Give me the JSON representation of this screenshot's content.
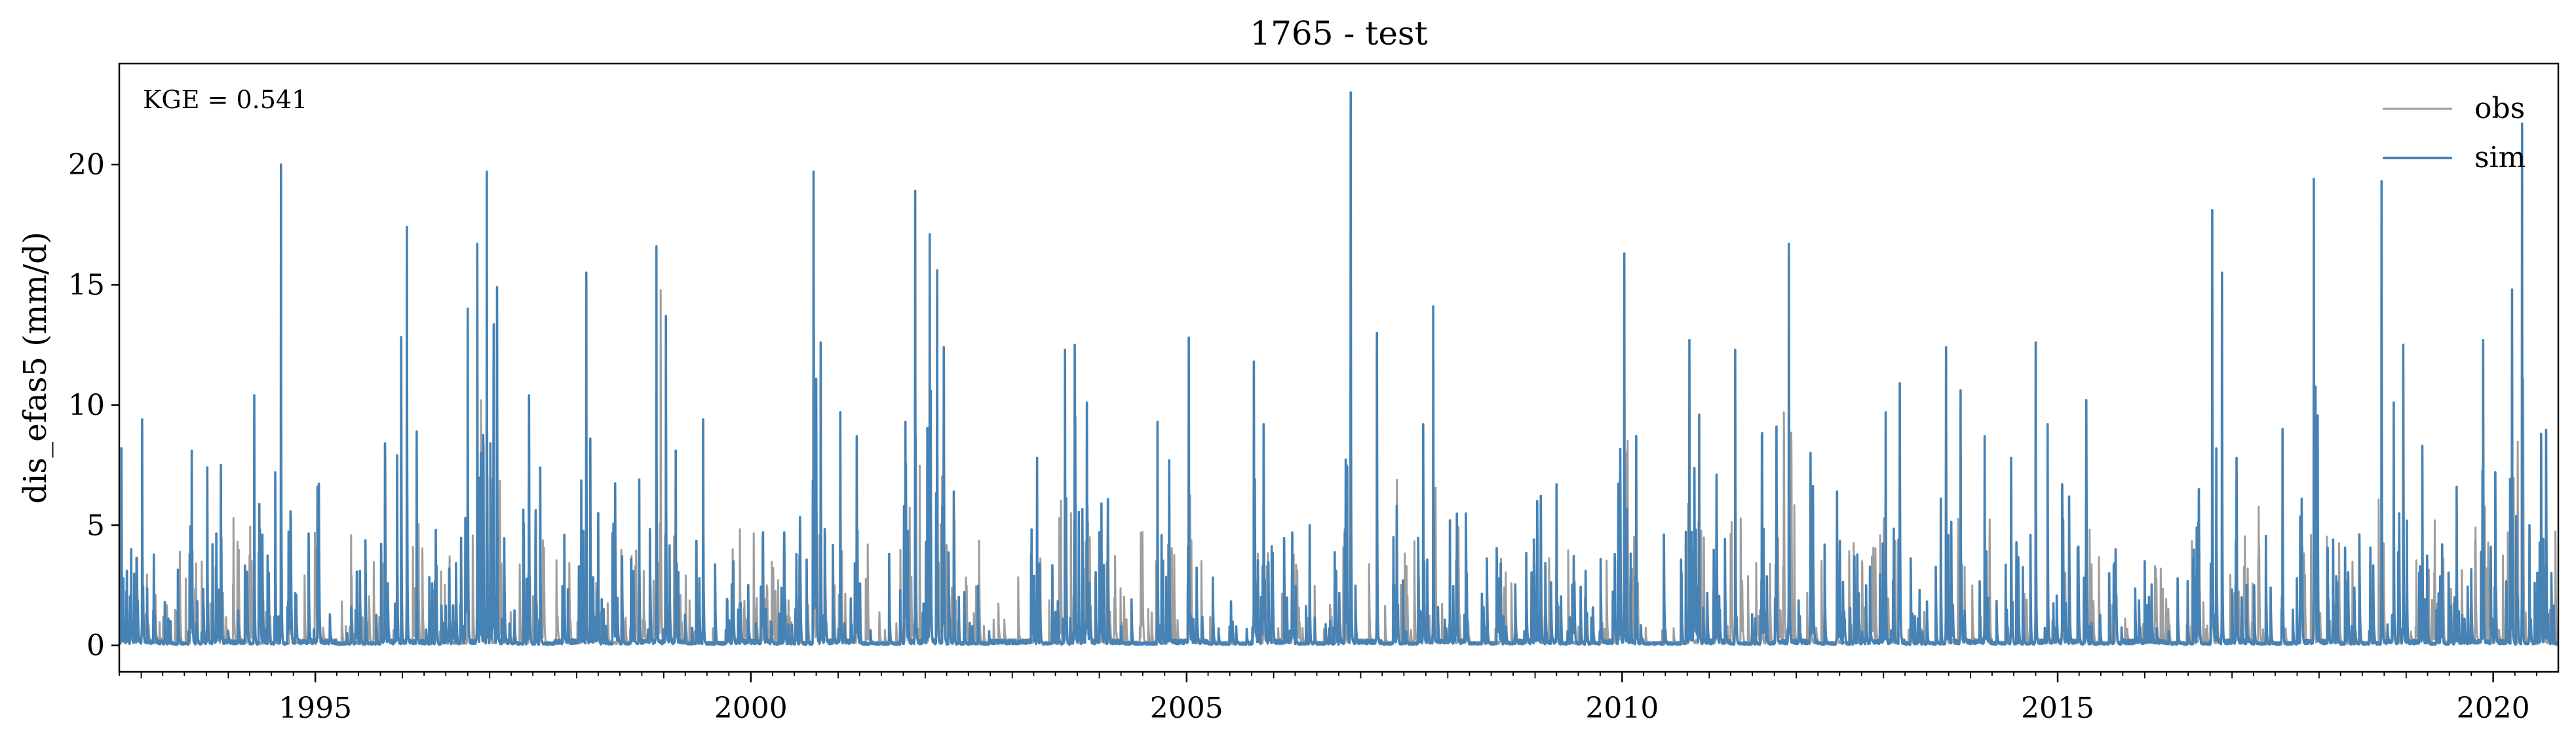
{
  "chart_data": {
    "type": "line",
    "title": "1765 - test",
    "xlabel": "",
    "ylabel": "dis_efas5 (mm/d)",
    "x_range": [
      "1992-10-01",
      "2020-09-30"
    ],
    "ylim": [
      -1.1,
      24.2
    ],
    "x_ticks": [
      "1995",
      "2000",
      "2005",
      "2010",
      "2015",
      "2020"
    ],
    "y_ticks": [
      "0",
      "5",
      "10",
      "15",
      "20"
    ],
    "grid": false,
    "legend": {
      "position": "top-right",
      "entries": [
        "obs",
        "sim"
      ]
    },
    "annotation": "KGE = 0.541",
    "series": [
      {
        "name": "obs",
        "color": "#9e9e9e",
        "peaks": [
          [
            "1997-02-01",
            9.7
          ],
          [
            "2010-01-20",
            7.9
          ],
          [
            "2011-11-10",
            9.7
          ],
          [
            "2018-06-20",
            4.3
          ],
          [
            "2019-05-01",
            5.2
          ]
        ]
      },
      {
        "name": "sim",
        "color": "#4682b4",
        "peaks": [
          [
            "1992-10-10",
            8.2
          ],
          [
            "1992-11-20",
            4.0
          ],
          [
            "1993-01-05",
            9.4
          ],
          [
            "1993-04-10",
            1.8
          ],
          [
            "1993-08-01",
            8.1
          ],
          [
            "1993-10-05",
            7.4
          ],
          [
            "1993-12-01",
            7.5
          ],
          [
            "1994-04-20",
            10.4
          ],
          [
            "1994-06-20",
            3.0
          ],
          [
            "1994-08-10",
            20.0
          ],
          [
            "1994-09-20",
            5.4
          ],
          [
            "1995-01-10",
            6.6
          ],
          [
            "1995-06-01",
            1.6
          ],
          [
            "1995-10-20",
            8.4
          ],
          [
            "1995-12-10",
            7.9
          ],
          [
            "1996-01-20",
            17.4
          ],
          [
            "1996-03-01",
            8.9
          ],
          [
            "1996-05-20",
            4.8
          ],
          [
            "1996-07-15",
            3.2
          ],
          [
            "1996-10-01",
            14.0
          ],
          [
            "1996-11-10",
            16.7
          ],
          [
            "1996-12-20",
            19.7
          ],
          [
            "1997-02-01",
            14.9
          ],
          [
            "1997-06-15",
            10.4
          ],
          [
            "1997-08-01",
            7.4
          ],
          [
            "1997-11-10",
            4.6
          ],
          [
            "1998-02-10",
            15.5
          ],
          [
            "1998-04-01",
            5.5
          ],
          [
            "1998-09-20",
            6.9
          ],
          [
            "1998-12-01",
            16.6
          ],
          [
            "1999-01-10",
            13.7
          ],
          [
            "1999-02-20",
            8.1
          ],
          [
            "1999-06-15",
            9.4
          ],
          [
            "1999-10-20",
            3.5
          ],
          [
            "2000-02-20",
            4.4
          ],
          [
            "2000-05-20",
            4.7
          ],
          [
            "2000-07-10",
            3.8
          ],
          [
            "2000-09-20",
            19.7
          ],
          [
            "2000-10-20",
            12.6
          ],
          [
            "2001-01-10",
            9.7
          ],
          [
            "2001-03-20",
            8.7
          ],
          [
            "2001-10-10",
            9.3
          ],
          [
            "2001-11-20",
            18.9
          ],
          [
            "2002-01-20",
            17.1
          ],
          [
            "2002-02-20",
            15.6
          ],
          [
            "2002-03-20",
            12.4
          ],
          [
            "2002-05-01",
            6.4
          ],
          [
            "2003-04-15",
            7.8
          ],
          [
            "2003-08-10",
            12.3
          ],
          [
            "2003-09-20",
            12.5
          ],
          [
            "2003-11-10",
            10.1
          ],
          [
            "2004-01-10",
            5.9
          ],
          [
            "2004-09-01",
            9.3
          ],
          [
            "2004-10-20",
            7.7
          ],
          [
            "2005-01-10",
            12.8
          ],
          [
            "2005-10-10",
            11.8
          ],
          [
            "2005-11-20",
            9.2
          ],
          [
            "2006-03-20",
            4.7
          ],
          [
            "2006-06-01",
            5.0
          ],
          [
            "2006-09-20",
            3.1
          ],
          [
            "2006-11-20",
            23.0
          ],
          [
            "2007-03-10",
            13.0
          ],
          [
            "2007-06-01",
            5.8
          ],
          [
            "2007-09-20",
            9.2
          ],
          [
            "2007-11-01",
            14.1
          ],
          [
            "2008-01-10",
            5.2
          ],
          [
            "2008-03-20",
            3.0
          ],
          [
            "2008-08-10",
            3.4
          ],
          [
            "2009-01-10",
            6.0
          ],
          [
            "2009-04-01",
            6.7
          ],
          [
            "2009-08-01",
            3.1
          ],
          [
            "2009-12-01",
            3.8
          ],
          [
            "2010-01-10",
            16.3
          ],
          [
            "2010-03-01",
            8.7
          ],
          [
            "2010-10-10",
            12.7
          ],
          [
            "2010-11-20",
            9.6
          ],
          [
            "2011-02-01",
            7.1
          ],
          [
            "2011-04-20",
            12.3
          ],
          [
            "2011-08-10",
            8.7
          ],
          [
            "2011-10-10",
            9.1
          ],
          [
            "2011-12-01",
            16.7
          ],
          [
            "2012-03-01",
            8.0
          ],
          [
            "2012-06-20",
            6.4
          ],
          [
            "2012-09-01",
            3.7
          ],
          [
            "2012-10-20",
            2.5
          ],
          [
            "2013-01-10",
            9.7
          ],
          [
            "2013-03-10",
            10.9
          ],
          [
            "2013-06-01",
            2.3
          ],
          [
            "2013-09-20",
            12.4
          ],
          [
            "2013-11-20",
            10.6
          ],
          [
            "2014-03-01",
            8.7
          ],
          [
            "2014-06-20",
            7.8
          ],
          [
            "2014-10-01",
            12.6
          ],
          [
            "2014-11-20",
            9.2
          ],
          [
            "2015-01-20",
            6.7
          ],
          [
            "2015-05-01",
            10.2
          ],
          [
            "2015-09-01",
            4.0
          ],
          [
            "2016-01-01",
            3.5
          ],
          [
            "2016-08-15",
            6.5
          ],
          [
            "2016-10-10",
            18.1
          ],
          [
            "2016-11-20",
            15.5
          ],
          [
            "2017-01-20",
            7.8
          ],
          [
            "2017-08-01",
            9.0
          ],
          [
            "2017-10-20",
            6.1
          ],
          [
            "2017-12-10",
            19.4
          ],
          [
            "2018-03-01",
            4.4
          ],
          [
            "2018-09-20",
            19.3
          ],
          [
            "2018-11-10",
            10.1
          ],
          [
            "2018-12-20",
            12.5
          ],
          [
            "2019-03-10",
            8.3
          ],
          [
            "2019-06-01",
            4.2
          ],
          [
            "2019-08-01",
            6.6
          ],
          [
            "2019-11-20",
            12.7
          ],
          [
            "2020-01-10",
            7.2
          ],
          [
            "2020-03-20",
            14.8
          ],
          [
            "2020-05-01",
            21.7
          ],
          [
            "2020-06-01",
            5.0
          ],
          [
            "2020-07-20",
            8.8
          ],
          [
            "2020-09-01",
            3.0
          ]
        ]
      }
    ]
  }
}
